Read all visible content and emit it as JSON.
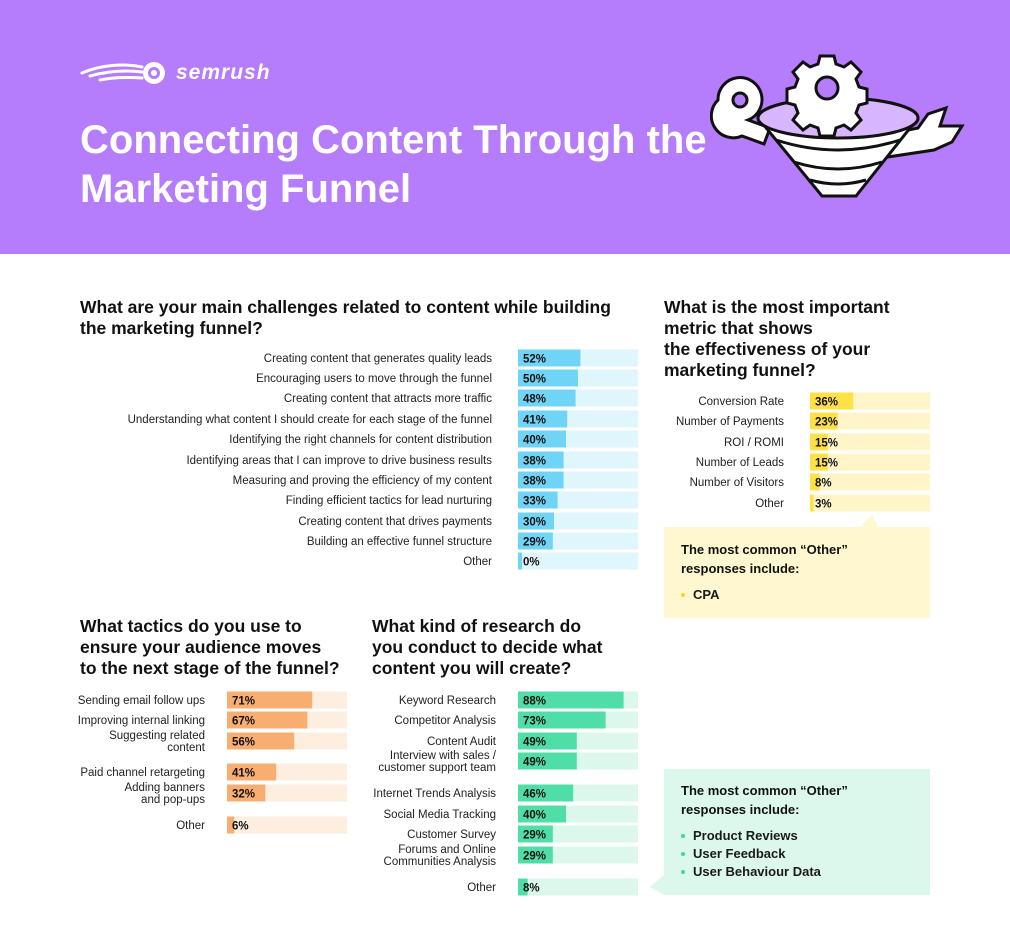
{
  "header": {
    "logo_text": "semrush",
    "title": "Connecting Content Through the Marketing Funnel",
    "bg_color": "#b57cfb",
    "illustration": "funnel-gear-wrench-illustration"
  },
  "colors": {
    "blue": "#6fd4f6",
    "blue_track": "#e0f6fd",
    "yellow": "#ffe046",
    "yellow_track": "#fff5c8",
    "orange": "#f9ae71",
    "orange_track": "#fdeee0",
    "green": "#4fdea8",
    "green_track": "#dcf8ec",
    "callout_yellow": "#fff7cf",
    "callout_green": "#dcf8ec"
  },
  "chart_data": [
    {
      "type": "bar",
      "orientation": "horizontal",
      "title": "What are your main challenges related to content while building the marketing funnel?",
      "categories": [
        "Creating content that generates quality leads",
        "Encouraging users to move through the funnel",
        "Creating content that attracts more traffic",
        "Understanding what content I should create for each stage of the funnel",
        "Identifying the right channels for content distribution",
        "Identifying areas that I can improve to drive business results",
        "Measuring and proving the efficiency of my content",
        "Finding efficient tactics for lead nurturing",
        "Creating content that drives payments",
        "Building an effective funnel structure",
        "Other"
      ],
      "values": [
        52,
        50,
        48,
        41,
        40,
        38,
        38,
        33,
        30,
        29,
        0
      ],
      "labels": [
        "52%",
        "50%",
        "48%",
        "41%",
        "40%",
        "38%",
        "38%",
        "33%",
        "30%",
        "29%",
        "0%"
      ],
      "xlim": [
        0,
        100
      ],
      "unit": "%"
    },
    {
      "type": "bar",
      "orientation": "horizontal",
      "title": "What is the most important metric that shows the effectiveness of your marketing funnel?",
      "categories": [
        "Conversion Rate",
        "Number of Payments",
        "ROI / ROMI",
        "Number of Leads",
        "Number of Visitors",
        "Other"
      ],
      "values": [
        36,
        23,
        15,
        15,
        8,
        3
      ],
      "labels": [
        "36%",
        "23%",
        "15%",
        "15%",
        "8%",
        "3%"
      ],
      "xlim": [
        0,
        100
      ],
      "unit": "%"
    },
    {
      "type": "bar",
      "orientation": "horizontal",
      "title": "What tactics do you use to ensure your audience moves to the next stage of the funnel?",
      "categories": [
        "Sending email follow ups",
        "Improving internal linking",
        "Suggesting related content",
        "Paid channel retargeting",
        "Adding banners and pop-ups",
        "Other"
      ],
      "values": [
        71,
        67,
        56,
        41,
        32,
        6
      ],
      "labels": [
        "71%",
        "67%",
        "56%",
        "41%",
        "32%",
        "6%"
      ],
      "xlim": [
        0,
        100
      ],
      "unit": "%"
    },
    {
      "type": "bar",
      "orientation": "horizontal",
      "title": "What kind of research do you conduct to decide what content you will create?",
      "categories": [
        "Keyword Research",
        "Competitor Analysis",
        "Content Audit",
        "Interview with sales / customer support team",
        "Internet Trends Analysis",
        "Social Media Tracking",
        "Customer Survey",
        "Forums and Online Communities Analysis",
        "Other"
      ],
      "values": [
        88,
        73,
        49,
        49,
        46,
        40,
        29,
        29,
        8
      ],
      "labels": [
        "88%",
        "73%",
        "49%",
        "49%",
        "46%",
        "40%",
        "29%",
        "29%",
        "8%"
      ],
      "xlim": [
        0,
        100
      ],
      "unit": "%"
    }
  ],
  "q1": {
    "title_lines": [
      "What are your main challenges related to content while building",
      "the marketing funnel?"
    ]
  },
  "q2": {
    "title_lines": [
      "What is the most important",
      "metric that shows",
      "the effectiveness of your",
      "marketing funnel?"
    ],
    "callout_title_lines": [
      "The most common “Other”",
      "responses include:"
    ],
    "callout_items": [
      "CPA"
    ]
  },
  "q3": {
    "title_lines": [
      "What tactics do you use to",
      "ensure your audience moves",
      "to the next stage of the funnel?"
    ],
    "category_lines": [
      [
        "Sending email follow ups"
      ],
      [
        "Improving internal linking"
      ],
      [
        "Suggesting related",
        "content"
      ],
      [
        "Paid channel retargeting"
      ],
      [
        "Adding banners",
        "and pop-ups"
      ],
      [
        "Other"
      ]
    ]
  },
  "q4": {
    "title_lines": [
      "What kind of research do",
      "you conduct to decide what",
      "content you will create?"
    ],
    "category_lines": [
      [
        "Keyword Research"
      ],
      [
        "Competitor Analysis"
      ],
      [
        "Content Audit"
      ],
      [
        "Interview with sales /",
        "customer support team"
      ],
      [
        "Internet Trends Analysis"
      ],
      [
        "Social Media Tracking"
      ],
      [
        "Customer Survey"
      ],
      [
        "Forums and Online",
        "Communities Analysis"
      ],
      [
        "Other"
      ]
    ],
    "callout_title_lines": [
      "The most common “Other”",
      "responses include:"
    ],
    "callout_items": [
      "Product Reviews",
      "User Feedback",
      "User Behaviour Data"
    ]
  }
}
